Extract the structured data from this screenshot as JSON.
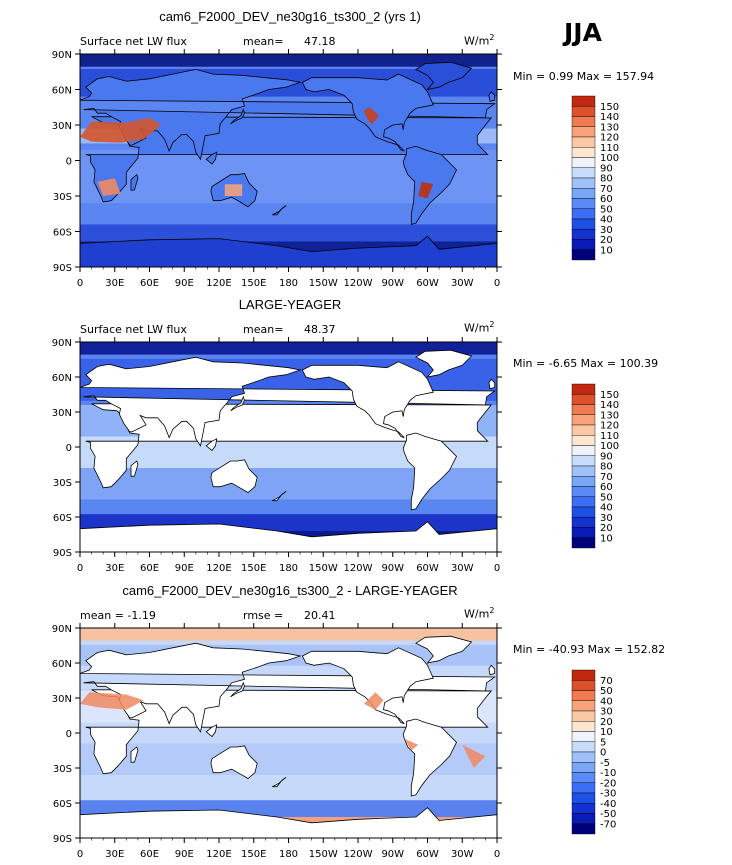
{
  "season": "JJA",
  "units_main": "W/m",
  "units_sup": "2",
  "lon_labels": [
    "0",
    "30E",
    "60E",
    "90E",
    "120E",
    "150E",
    "180",
    "150W",
    "120W",
    "90W",
    "60W",
    "30W",
    "0"
  ],
  "lat_labels": [
    "90N",
    "60N",
    "30N",
    "0",
    "30S",
    "60S",
    "90S"
  ],
  "colors": {
    "abs_scale": [
      "#00007a",
      "#0a1ab4",
      "#1432d2",
      "#1e50e6",
      "#3c6ef5",
      "#5a8af5",
      "#7aa6f8",
      "#a0c0fa",
      "#c8dcfc",
      "#eef3fe",
      "#fde6d0",
      "#fbc8a6",
      "#f8a27c",
      "#f07a52",
      "#dc502a",
      "#c0280f",
      "#8c0a00"
    ],
    "diff_scale": [
      "#00007a",
      "#0a1ab4",
      "#1432d2",
      "#1e50e6",
      "#3c6ef5",
      "#5a8af5",
      "#7aa6f8",
      "#a0c0fa",
      "#c8dcfc",
      "#eef3fe",
      "#fde6d0",
      "#fbc8a6",
      "#f8a27c",
      "#f07a52",
      "#dc502a",
      "#c0280f",
      "#8c0a00"
    ]
  },
  "panels": [
    {
      "title": "cam6_F2000_DEV_ne30g16_ts300_2 (yrs 1)",
      "left_label": "Surface net LW flux",
      "stat_label": "mean=",
      "stat_value": "47.18",
      "minmax": "Min =   0.99 Max = 157.94",
      "colorbar_labels": [
        "150",
        "140",
        "130",
        "120",
        "110",
        "100",
        "90",
        "80",
        "70",
        "60",
        "50",
        "40",
        "30",
        "20",
        "10"
      ]
    },
    {
      "title": "LARGE-YEAGER",
      "left_label": "Surface net LW flux",
      "stat_label": "mean=",
      "stat_value": "48.37",
      "minmax": "Min =  -6.65 Max = 100.39",
      "colorbar_labels": [
        "150",
        "140",
        "130",
        "120",
        "110",
        "100",
        "90",
        "80",
        "70",
        "60",
        "50",
        "40",
        "30",
        "20",
        "10"
      ]
    },
    {
      "title": "cam6_F2000_DEV_ne30g16_ts300_2 - LARGE-YEAGER",
      "left_label": "mean =  -1.19",
      "stat_label": "rmse =",
      "stat_value": "20.41",
      "minmax": "Min = -40.93 Max = 152.82",
      "colorbar_labels": [
        "70",
        "50",
        "40",
        "30",
        "20",
        "10",
        "5",
        "0",
        "-5",
        "-10",
        "-20",
        "-30",
        "-40",
        "-50",
        "-70"
      ]
    }
  ]
}
